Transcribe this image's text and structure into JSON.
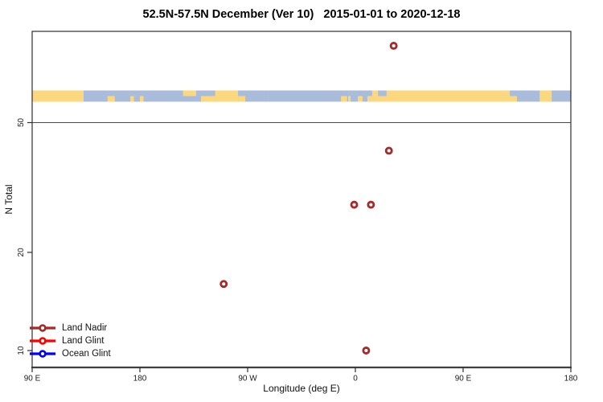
{
  "title": "52.5N-57.5N December (Ver 10)   2015-01-01 to 2020-12-18",
  "chart_data": {
    "type": "scatter",
    "title": "52.5N-57.5N December (Ver 10)   2015-01-01 to 2020-12-18",
    "xlabel": "Longitude (deg E)",
    "ylabel": "N Total",
    "x_axis": {
      "min_deg": 90,
      "max_deg": 540,
      "ticks": [
        {
          "label": "90 E",
          "deg": 90
        },
        {
          "label": "180",
          "deg": 180
        },
        {
          "label": "90 W",
          "deg": 270
        },
        {
          "label": "0",
          "deg": 360
        },
        {
          "label": "90 E",
          "deg": 450
        },
        {
          "label": "180",
          "deg": 540
        }
      ]
    },
    "y_axis": {
      "scale": "log10",
      "min": 9,
      "max": 95,
      "ticks": [
        {
          "label": "50",
          "value": 50
        },
        {
          "label": "20",
          "value": 20
        },
        {
          "label": "10",
          "value": 10
        }
      ]
    },
    "reference_line_value": 50,
    "grid": "off",
    "legend_position": "bottom-left",
    "series": [
      {
        "name": "Land Nadir",
        "color": "#A52A2A",
        "marker": "open-circle",
        "points": [
          {
            "lon_axis_deg": 392,
            "lon_label": "32E",
            "n": 86
          },
          {
            "lon_axis_deg": 388,
            "lon_label": "28E",
            "n": 41
          },
          {
            "lon_axis_deg": 359,
            "lon_label": "1W",
            "n": 28
          },
          {
            "lon_axis_deg": 373,
            "lon_label": "13E",
            "n": 28
          },
          {
            "lon_axis_deg": 250,
            "lon_label": "110W",
            "n": 16
          },
          {
            "lon_axis_deg": 369,
            "lon_label": "9E",
            "n": 10
          }
        ]
      },
      {
        "name": "Land Glint",
        "color": "#FF0000",
        "marker": "open-circle",
        "points": []
      },
      {
        "name": "Ocean Glint",
        "color": "#0000FF",
        "marker": "open-circle",
        "points": []
      }
    ],
    "map_strip": {
      "description": "land-ocean mask band for latitude zone 52.5N-57.5N",
      "land_color": "#FBD77D",
      "ocean_color": "#A9BCDB",
      "base": "land",
      "segments": [
        {
          "from": 133,
          "to": 231,
          "color": "ocean",
          "band": "full"
        },
        {
          "from": 153,
          "to": 159,
          "color": "land",
          "band": "bottom"
        },
        {
          "from": 172,
          "to": 175,
          "color": "land",
          "band": "bottom"
        },
        {
          "from": 180,
          "to": 183,
          "color": "land",
          "band": "bottom"
        },
        {
          "from": 216,
          "to": 227,
          "color": "land",
          "band": "top"
        },
        {
          "from": 231,
          "to": 243,
          "color": "ocean",
          "band": "top"
        },
        {
          "from": 243,
          "to": 262,
          "color": "land",
          "band": "full"
        },
        {
          "from": 262,
          "to": 287,
          "color": "ocean",
          "band": "full"
        },
        {
          "from": 262,
          "to": 268,
          "color": "land",
          "band": "bottom"
        },
        {
          "from": 287,
          "to": 354,
          "color": "ocean",
          "band": "full"
        },
        {
          "from": 348,
          "to": 353,
          "color": "land",
          "band": "bottom"
        },
        {
          "from": 354,
          "to": 374,
          "color": "ocean",
          "band": "top"
        },
        {
          "from": 356,
          "to": 362,
          "color": "ocean",
          "band": "bottom"
        },
        {
          "from": 366,
          "to": 370,
          "color": "ocean",
          "band": "bottom"
        },
        {
          "from": 379,
          "to": 386,
          "color": "ocean",
          "band": "top"
        },
        {
          "from": 489,
          "to": 495,
          "color": "ocean",
          "band": "top"
        },
        {
          "from": 495,
          "to": 514,
          "color": "ocean",
          "band": "full"
        },
        {
          "from": 514,
          "to": 524,
          "color": "land",
          "band": "full"
        },
        {
          "from": 524,
          "to": 540,
          "color": "ocean",
          "band": "full"
        }
      ]
    }
  },
  "legend": {
    "items": [
      {
        "label": "Land Nadir",
        "color": "#A52A2A"
      },
      {
        "label": "Land Glint",
        "color": "#FF0000"
      },
      {
        "label": "Ocean Glint",
        "color": "#0000FF"
      }
    ]
  }
}
